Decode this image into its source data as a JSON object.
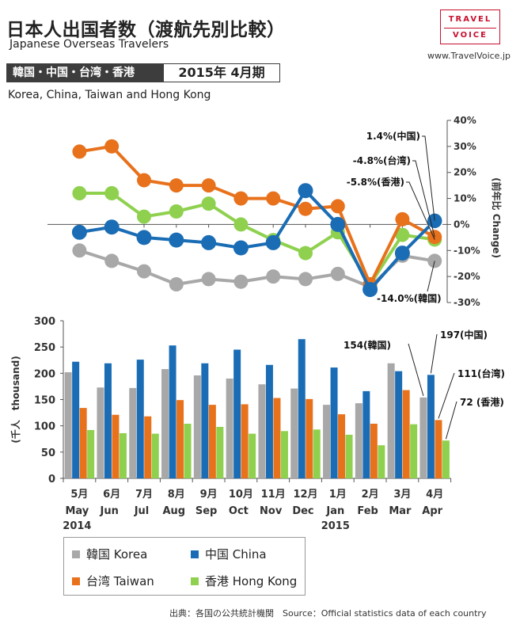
{
  "header": {
    "title": "日本人出国者数（渡航先別比較）",
    "subtitle": "Japanese Overseas Travelers",
    "region_jp": "韓国・中国・台湾・香港",
    "period": "2015年 4月期",
    "region_en": "Korea, China, Taiwan and Hong Kong"
  },
  "brand": {
    "logo_line1": "TRAVEL",
    "logo_line2": "VOICE",
    "url": "www.TravelVoice.jp"
  },
  "colors": {
    "korea": "#a8a8a8",
    "china": "#1a6db5",
    "taiwan": "#e8711c",
    "hongkong": "#8fd14f"
  },
  "chart_data": [
    {
      "type": "line",
      "title": "前年比 Change",
      "ylabel": "(前年比 Change)",
      "ylim": [
        -30,
        40
      ],
      "yticks": [
        "40%",
        "30%",
        "20%",
        "10%",
        "0%",
        "-10%",
        "-20%",
        "-30%"
      ],
      "categories": [
        "5月",
        "6月",
        "7月",
        "8月",
        "9月",
        "10月",
        "11月",
        "12月",
        "1月",
        "2月",
        "3月",
        "4月"
      ],
      "series": [
        {
          "name": "韓国 Korea",
          "key": "korea",
          "values": [
            -10,
            -14,
            -18,
            -23,
            -21,
            -22,
            -20,
            -21,
            -19,
            -24,
            -12,
            -14
          ]
        },
        {
          "name": "中国 China",
          "key": "china",
          "values": [
            -3,
            -1,
            -5,
            -6,
            -7,
            -9,
            -7,
            13,
            0,
            -25,
            -11,
            1.4
          ]
        },
        {
          "name": "台湾 Taiwan",
          "key": "taiwan",
          "values": [
            28,
            30,
            17,
            15,
            15,
            10,
            10,
            6,
            7,
            -23,
            2,
            -4.8
          ]
        },
        {
          "name": "香港 Hong Kong",
          "key": "hongkong",
          "values": [
            12,
            12,
            3,
            5,
            8,
            0,
            -6,
            -11,
            -3,
            -23,
            -4,
            -5.8
          ]
        }
      ],
      "annotations": [
        {
          "series": "china",
          "text": "1.4%(中国)"
        },
        {
          "series": "taiwan",
          "text": "-4.8%(台湾)"
        },
        {
          "series": "hongkong",
          "text": "-5.8%(香港)"
        },
        {
          "series": "korea",
          "text": "-14.0%(韓国)"
        }
      ]
    },
    {
      "type": "bar",
      "ylabel": "(千人　thousand)",
      "ylim": [
        0,
        300
      ],
      "yticks": [
        "300",
        "250",
        "200",
        "150",
        "100",
        "50",
        "0"
      ],
      "categories": [
        {
          "month": "5月",
          "en": "May",
          "year": "2014"
        },
        {
          "month": "6月",
          "en": "Jun",
          "year": ""
        },
        {
          "month": "7月",
          "en": "Jul",
          "year": ""
        },
        {
          "month": "8月",
          "en": "Aug",
          "year": ""
        },
        {
          "month": "9月",
          "en": "Sep",
          "year": ""
        },
        {
          "month": "10月",
          "en": "Oct",
          "year": ""
        },
        {
          "month": "11月",
          "en": "Nov",
          "year": ""
        },
        {
          "month": "12月",
          "en": "Dec",
          "year": ""
        },
        {
          "month": "1月",
          "en": "Jan",
          "year": "2015"
        },
        {
          "month": "2月",
          "en": "Feb",
          "year": ""
        },
        {
          "month": "3月",
          "en": "Mar",
          "year": ""
        },
        {
          "month": "4月",
          "en": "Apr",
          "year": ""
        }
      ],
      "series": [
        {
          "name": "韓国 Korea",
          "key": "korea",
          "values": [
            202,
            173,
            172,
            208,
            196,
            190,
            179,
            171,
            140,
            143,
            219,
            154
          ]
        },
        {
          "name": "中国 China",
          "key": "china",
          "values": [
            222,
            219,
            226,
            253,
            219,
            245,
            216,
            265,
            211,
            166,
            204,
            197
          ]
        },
        {
          "name": "台湾 Taiwan",
          "key": "taiwan",
          "values": [
            134,
            121,
            118,
            149,
            140,
            141,
            153,
            151,
            122,
            104,
            168,
            111
          ]
        },
        {
          "name": "香港 Hong Kong",
          "key": "hongkong",
          "values": [
            92,
            86,
            85,
            104,
            98,
            85,
            90,
            93,
            83,
            63,
            103,
            72
          ]
        }
      ],
      "annotations": [
        {
          "series": "korea",
          "text": "154(韓国)"
        },
        {
          "series": "china",
          "text": "197(中国)"
        },
        {
          "series": "taiwan",
          "text": "111(台湾)"
        },
        {
          "series": "hongkong",
          "text": "72 (香港)"
        }
      ]
    }
  ],
  "legend": [
    {
      "key": "korea",
      "label": "韓国 Korea"
    },
    {
      "key": "china",
      "label": "中国 China"
    },
    {
      "key": "taiwan",
      "label": "台湾 Taiwan"
    },
    {
      "key": "hongkong",
      "label": "香港 Hong Kong"
    }
  ],
  "footer": {
    "source": "出典：各国の公共統計機関　Source：Official statistics data of each country"
  }
}
